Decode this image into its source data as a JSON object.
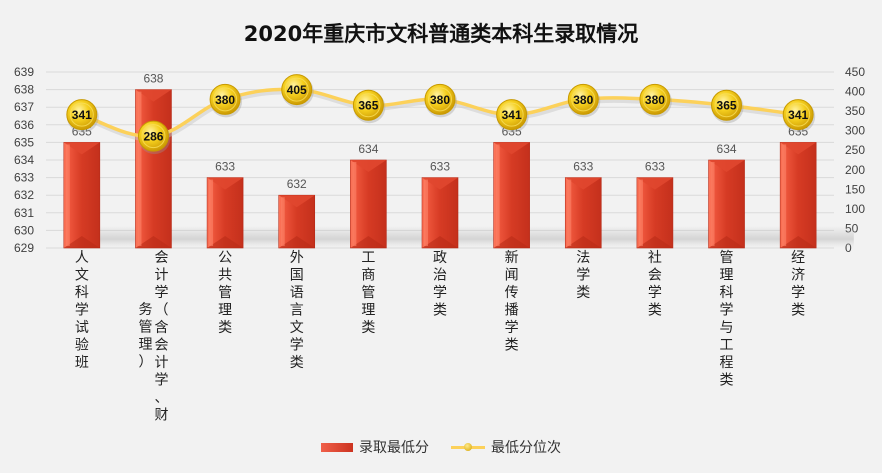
{
  "chart_data": {
    "type": "bar",
    "title": "2020年重庆市文科普通类本科生录取情况",
    "categories": [
      "人文科学试验班",
      "会计学（含会计学、财务管理）",
      "公共管理类",
      "外国语言文学类",
      "工商管理类",
      "政治学类",
      "新闻传播学类",
      "法学类",
      "社会学类",
      "管理科学与工程类",
      "经济学类"
    ],
    "category_lines": [
      [
        "人文科学试验班"
      ],
      [
        "会计学（含会计学、财",
        "务管理）"
      ],
      [
        "公共管理类"
      ],
      [
        "外国语言文学类"
      ],
      [
        "工商管理类"
      ],
      [
        "政治学类"
      ],
      [
        "新闻传播学类"
      ],
      [
        "法学类"
      ],
      [
        "社会学类"
      ],
      [
        "管理科学与工程类"
      ],
      [
        "经济学类"
      ]
    ],
    "series": [
      {
        "name": "录取最低分",
        "type": "bar",
        "axis": "left",
        "color": "#d33a22",
        "values": [
          635,
          638,
          633,
          632,
          634,
          633,
          635,
          633,
          633,
          634,
          635
        ]
      },
      {
        "name": "最低分位次",
        "type": "line",
        "axis": "right",
        "color": "#fcd15a",
        "values": [
          341,
          286,
          380,
          405,
          365,
          380,
          341,
          380,
          380,
          365,
          341
        ]
      }
    ],
    "y_left": {
      "min": 629,
      "max": 639,
      "step": 1,
      "ticks": [
        "639",
        "638",
        "637",
        "636",
        "635",
        "634",
        "633",
        "632",
        "631",
        "630",
        "629"
      ]
    },
    "y_right": {
      "min": 0,
      "max": 450,
      "step": 50,
      "ticks": [
        "450",
        "400",
        "350",
        "300",
        "250",
        "200",
        "150",
        "100",
        "50",
        "0"
      ]
    },
    "grid": true,
    "legend_position": "bottom"
  }
}
